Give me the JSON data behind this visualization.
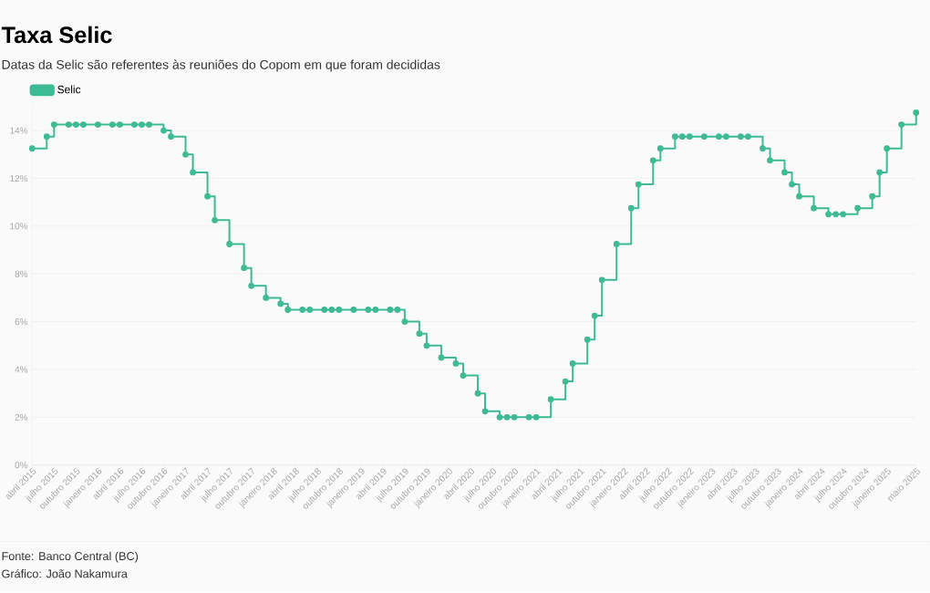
{
  "chart_data": {
    "type": "step",
    "title": "Taxa Selic",
    "subtitle": "Datas da Selic são referentes às reuniões do Copom em que foram decididas",
    "annotations": [
      "Fonte: Banco Central (BC)",
      "Gráfico: João Nakamura"
    ],
    "x": [
      "2015-04",
      "2015-06",
      "2015-07",
      "2015-09",
      "2015-10",
      "2015-11",
      "2016-01",
      "2016-03",
      "2016-04",
      "2016-06",
      "2016-07",
      "2016-08",
      "2016-10",
      "2016-11",
      "2017-01",
      "2017-02",
      "2017-04",
      "2017-05",
      "2017-07",
      "2017-09",
      "2017-10",
      "2017-12",
      "2018-02",
      "2018-03",
      "2018-05",
      "2018-06",
      "2018-08",
      "2018-09",
      "2018-10",
      "2018-12",
      "2019-02",
      "2019-03",
      "2019-05",
      "2019-06",
      "2019-07",
      "2019-09",
      "2019-10",
      "2019-12",
      "2020-02",
      "2020-03",
      "2020-05",
      "2020-06",
      "2020-08",
      "2020-09",
      "2020-10",
      "2020-12",
      "2021-01",
      "2021-03",
      "2021-05",
      "2021-06",
      "2021-08",
      "2021-09",
      "2021-10",
      "2021-12",
      "2022-02",
      "2022-03",
      "2022-05",
      "2022-06",
      "2022-08",
      "2022-09",
      "2022-10",
      "2022-12",
      "2023-02",
      "2023-03",
      "2023-05",
      "2023-06",
      "2023-08",
      "2023-09",
      "2023-11",
      "2023-12",
      "2024-01",
      "2024-03",
      "2024-05",
      "2024-06",
      "2024-07",
      "2024-09",
      "2024-11",
      "2024-12",
      "2025-01",
      "2025-03",
      "2025-05"
    ],
    "series": [
      {
        "name": "Selic",
        "color": "#3dbb95",
        "values": [
          13.25,
          13.75,
          14.25,
          14.25,
          14.25,
          14.25,
          14.25,
          14.25,
          14.25,
          14.25,
          14.25,
          14.25,
          14.0,
          13.75,
          13.0,
          12.25,
          11.25,
          10.25,
          9.25,
          8.25,
          7.5,
          7.0,
          6.75,
          6.5,
          6.5,
          6.5,
          6.5,
          6.5,
          6.5,
          6.5,
          6.5,
          6.5,
          6.5,
          6.5,
          6.0,
          5.5,
          5.0,
          4.5,
          4.25,
          3.75,
          3.0,
          2.25,
          2.0,
          2.0,
          2.0,
          2.0,
          2.0,
          2.75,
          3.5,
          4.25,
          5.25,
          6.25,
          7.75,
          9.25,
          10.75,
          11.75,
          12.75,
          13.25,
          13.75,
          13.75,
          13.75,
          13.75,
          13.75,
          13.75,
          13.75,
          13.75,
          13.25,
          12.75,
          12.25,
          11.75,
          11.25,
          10.75,
          10.5,
          10.5,
          10.5,
          10.75,
          11.25,
          12.25,
          13.25,
          14.25,
          14.75
        ]
      }
    ],
    "xlim": [
      "2015-04",
      "2025-05"
    ],
    "xticks": [
      {
        "value": "2015-04",
        "label": "abril 2015"
      },
      {
        "value": "2015-07",
        "label": "julho 2015"
      },
      {
        "value": "2015-10",
        "label": "outubro 2015"
      },
      {
        "value": "2016-01",
        "label": "janeiro 2016"
      },
      {
        "value": "2016-04",
        "label": "abril 2016"
      },
      {
        "value": "2016-07",
        "label": "julho 2016"
      },
      {
        "value": "2016-10",
        "label": "outubro 2016"
      },
      {
        "value": "2017-01",
        "label": "janeiro 2017"
      },
      {
        "value": "2017-04",
        "label": "abril 2017"
      },
      {
        "value": "2017-07",
        "label": "julho 2017"
      },
      {
        "value": "2017-10",
        "label": "outubro 2017"
      },
      {
        "value": "2018-01",
        "label": "janeiro 2018"
      },
      {
        "value": "2018-04",
        "label": "abril 2018"
      },
      {
        "value": "2018-07",
        "label": "julho 2018"
      },
      {
        "value": "2018-10",
        "label": "outubro 2018"
      },
      {
        "value": "2019-01",
        "label": "janeiro 2019"
      },
      {
        "value": "2019-04",
        "label": "abril 2019"
      },
      {
        "value": "2019-07",
        "label": "julho 2019"
      },
      {
        "value": "2019-10",
        "label": "outubro 2019"
      },
      {
        "value": "2020-01",
        "label": "janeiro 2020"
      },
      {
        "value": "2020-04",
        "label": "abril 2020"
      },
      {
        "value": "2020-07",
        "label": "julho 2020"
      },
      {
        "value": "2020-10",
        "label": "outubro 2020"
      },
      {
        "value": "2021-01",
        "label": "janeiro 2021"
      },
      {
        "value": "2021-04",
        "label": "abril 2021"
      },
      {
        "value": "2021-07",
        "label": "julho 2021"
      },
      {
        "value": "2021-10",
        "label": "outubro 2021"
      },
      {
        "value": "2022-01",
        "label": "janeiro 2022"
      },
      {
        "value": "2022-04",
        "label": "abril 2022"
      },
      {
        "value": "2022-07",
        "label": "julho 2022"
      },
      {
        "value": "2022-10",
        "label": "outubro 2022"
      },
      {
        "value": "2023-01",
        "label": "janeiro 2023"
      },
      {
        "value": "2023-04",
        "label": "abril 2023"
      },
      {
        "value": "2023-07",
        "label": "julho 2023"
      },
      {
        "value": "2023-10",
        "label": "outubro 2023"
      },
      {
        "value": "2024-01",
        "label": "janeiro 2024"
      },
      {
        "value": "2024-04",
        "label": "abril 2024"
      },
      {
        "value": "2024-07",
        "label": "julho 2024"
      },
      {
        "value": "2024-10",
        "label": "outubro 2024"
      },
      {
        "value": "2025-01",
        "label": "janeiro 2025"
      },
      {
        "value": "2025-05",
        "label": "maio 2025"
      }
    ],
    "ylim": [
      0,
      15
    ],
    "yticks": [
      {
        "value": 0,
        "label": "0%"
      },
      {
        "value": 2,
        "label": "2%"
      },
      {
        "value": 4,
        "label": "4%"
      },
      {
        "value": 6,
        "label": "6%"
      },
      {
        "value": 8,
        "label": "8%"
      },
      {
        "value": 10,
        "label": "10%"
      },
      {
        "value": 12,
        "label": "12%"
      },
      {
        "value": 14,
        "label": "14%"
      }
    ],
    "grid": "y",
    "legend": "top left",
    "marker": "circle",
    "line_style": "solid"
  }
}
